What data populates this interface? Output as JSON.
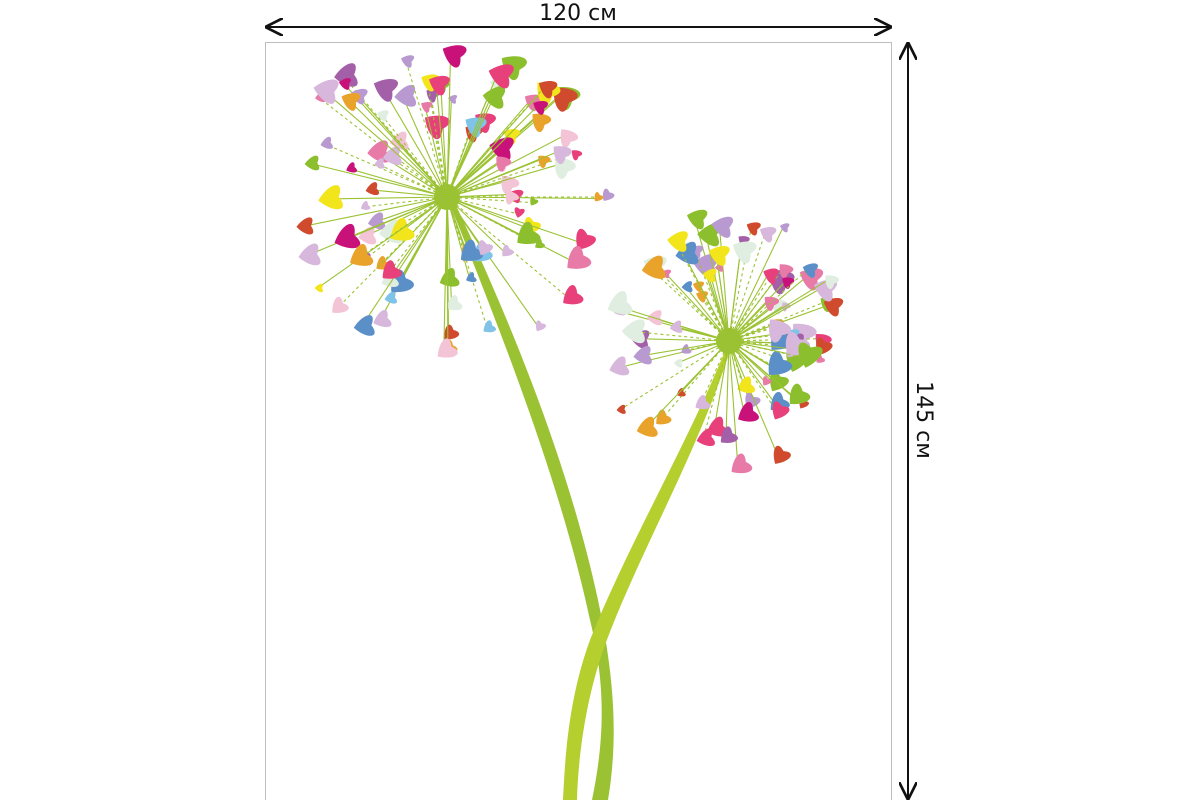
{
  "dimensions": {
    "width": "120 см",
    "height": "145 см"
  }
}
